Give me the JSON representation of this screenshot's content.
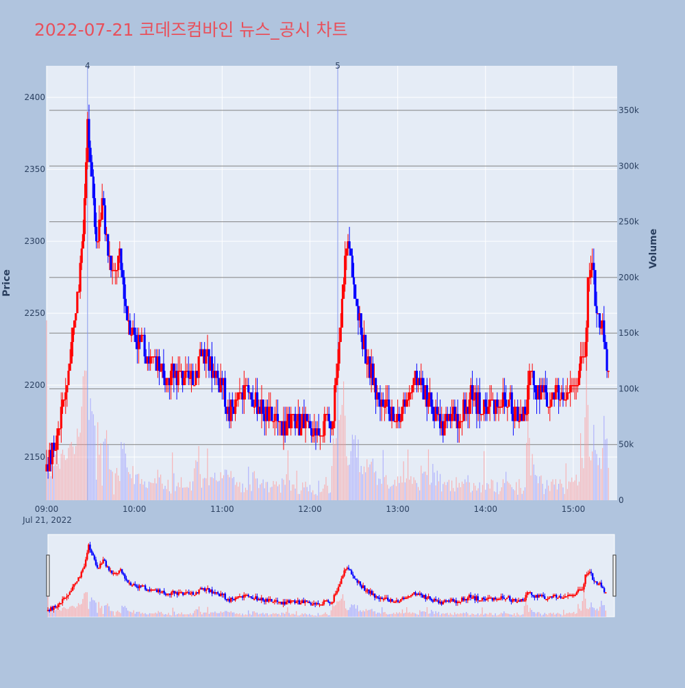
{
  "title": "2022-07-21 코데즈컴바인 뉴스_공시 차트",
  "colors": {
    "up": "#ff0000",
    "down": "#0000ff",
    "bg": "#b0c4de",
    "plot": "#e5ecf6",
    "title": "#e8505b"
  },
  "chart_data": {
    "type": "candlestick",
    "xlabel": "",
    "ylabel": "Price",
    "y2label": "Volume",
    "x_ticks": [
      "09:00",
      "10:00",
      "11:00",
      "12:00",
      "13:00",
      "14:00",
      "15:00"
    ],
    "x_date_label": "Jul 21, 2022",
    "x_range": [
      "09:00",
      "15:30"
    ],
    "y_ticks": [
      2150,
      2200,
      2250,
      2300,
      2350,
      2400
    ],
    "ylim": [
      2120,
      2422
    ],
    "y2_ticks": [
      "0",
      "50k",
      "100k",
      "150k",
      "200k",
      "250k",
      "300k",
      "350k"
    ],
    "y2lim": [
      0,
      390000
    ],
    "news_markers": [
      {
        "time": "09:28",
        "label": "4"
      },
      {
        "time": "12:19",
        "label": "5"
      }
    ],
    "price_anchors": [
      [
        "09:00",
        2140
      ],
      [
        "09:05",
        2155
      ],
      [
        "09:10",
        2180
      ],
      [
        "09:15",
        2210
      ],
      [
        "09:20",
        2250
      ],
      [
        "09:24",
        2290
      ],
      [
        "09:28",
        2380
      ],
      [
        "09:31",
        2340
      ],
      [
        "09:34",
        2300
      ],
      [
        "09:38",
        2330
      ],
      [
        "09:42",
        2290
      ],
      [
        "09:46",
        2275
      ],
      [
        "09:50",
        2290
      ],
      [
        "09:55",
        2250
      ],
      [
        "10:00",
        2235
      ],
      [
        "10:10",
        2220
      ],
      [
        "10:20",
        2205
      ],
      [
        "10:30",
        2210
      ],
      [
        "10:40",
        2200
      ],
      [
        "10:45",
        2225
      ],
      [
        "10:55",
        2210
      ],
      [
        "11:00",
        2200
      ],
      [
        "11:05",
        2180
      ],
      [
        "11:10",
        2190
      ],
      [
        "11:20",
        2195
      ],
      [
        "11:30",
        2180
      ],
      [
        "11:40",
        2172
      ],
      [
        "11:50",
        2175
      ],
      [
        "12:00",
        2170
      ],
      [
        "12:10",
        2172
      ],
      [
        "12:15",
        2175
      ],
      [
        "12:18",
        2200
      ],
      [
        "12:21",
        2240
      ],
      [
        "12:25",
        2300
      ],
      [
        "12:28",
        2290
      ],
      [
        "12:32",
        2250
      ],
      [
        "12:38",
        2225
      ],
      [
        "12:45",
        2195
      ],
      [
        "12:55",
        2180
      ],
      [
        "13:00",
        2175
      ],
      [
        "13:10",
        2200
      ],
      [
        "13:15",
        2205
      ],
      [
        "13:20",
        2190
      ],
      [
        "13:30",
        2170
      ],
      [
        "13:40",
        2178
      ],
      [
        "13:50",
        2190
      ],
      [
        "14:00",
        2185
      ],
      [
        "14:10",
        2190
      ],
      [
        "14:20",
        2183
      ],
      [
        "14:28",
        2180
      ],
      [
        "14:30",
        2215
      ],
      [
        "14:35",
        2195
      ],
      [
        "14:45",
        2190
      ],
      [
        "14:55",
        2195
      ],
      [
        "15:00",
        2200
      ],
      [
        "15:05",
        2210
      ],
      [
        "15:08",
        2225
      ],
      [
        "15:10",
        2270
      ],
      [
        "15:12",
        2285
      ],
      [
        "15:16",
        2255
      ],
      [
        "15:20",
        2240
      ],
      [
        "15:24",
        2205
      ]
    ]
  }
}
